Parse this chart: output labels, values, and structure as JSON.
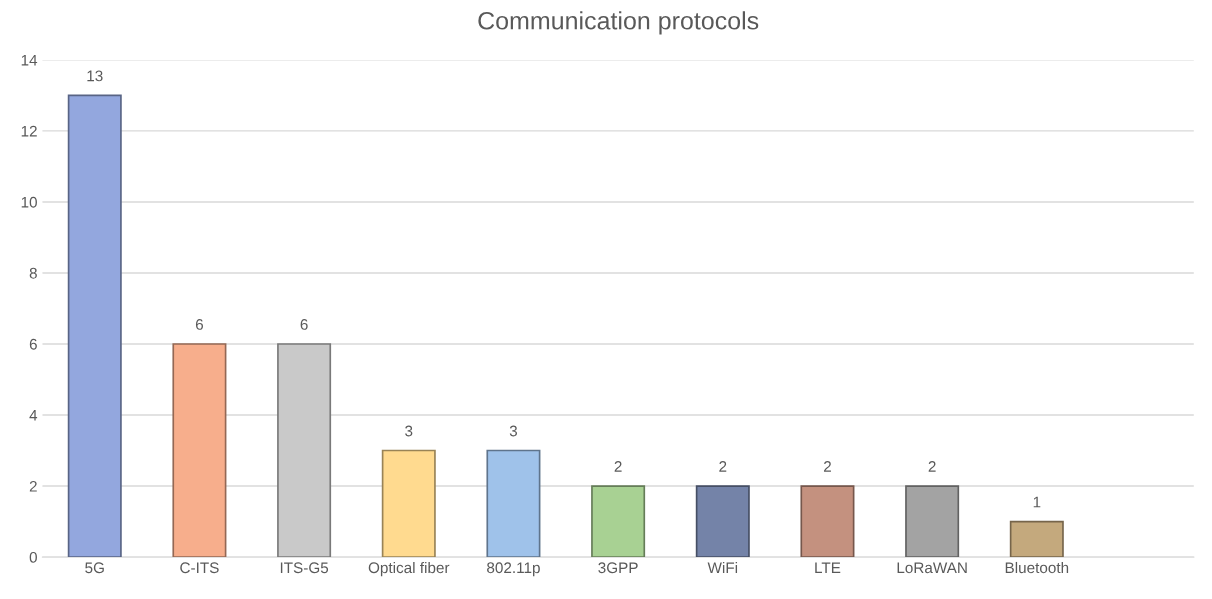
{
  "chart_data": {
    "type": "bar",
    "title": "Communication protocols",
    "categories": [
      "5G",
      "C-ITS",
      "ITS-G5",
      "Optical fiber",
      "802.11p",
      "3GPP",
      "WiFi",
      "LTE",
      "LoRaWAN",
      "Bluetooth",
      null
    ],
    "values": [
      13,
      6,
      6,
      3,
      3,
      2,
      2,
      2,
      2,
      1,
      null
    ],
    "colors": [
      "#93a7de",
      "#f7ae8c",
      "#c9c9c9",
      "#ffda8f",
      "#9fc2ea",
      "#a8d193",
      "#7483a8",
      "#c4917f",
      "#a3a3a3",
      "#c4a97d",
      "#cccccc"
    ],
    "ylim": [
      0,
      14
    ],
    "yticks": [
      0,
      2,
      4,
      6,
      8,
      10,
      12,
      14
    ],
    "grid": "y",
    "data_labels": true
  }
}
